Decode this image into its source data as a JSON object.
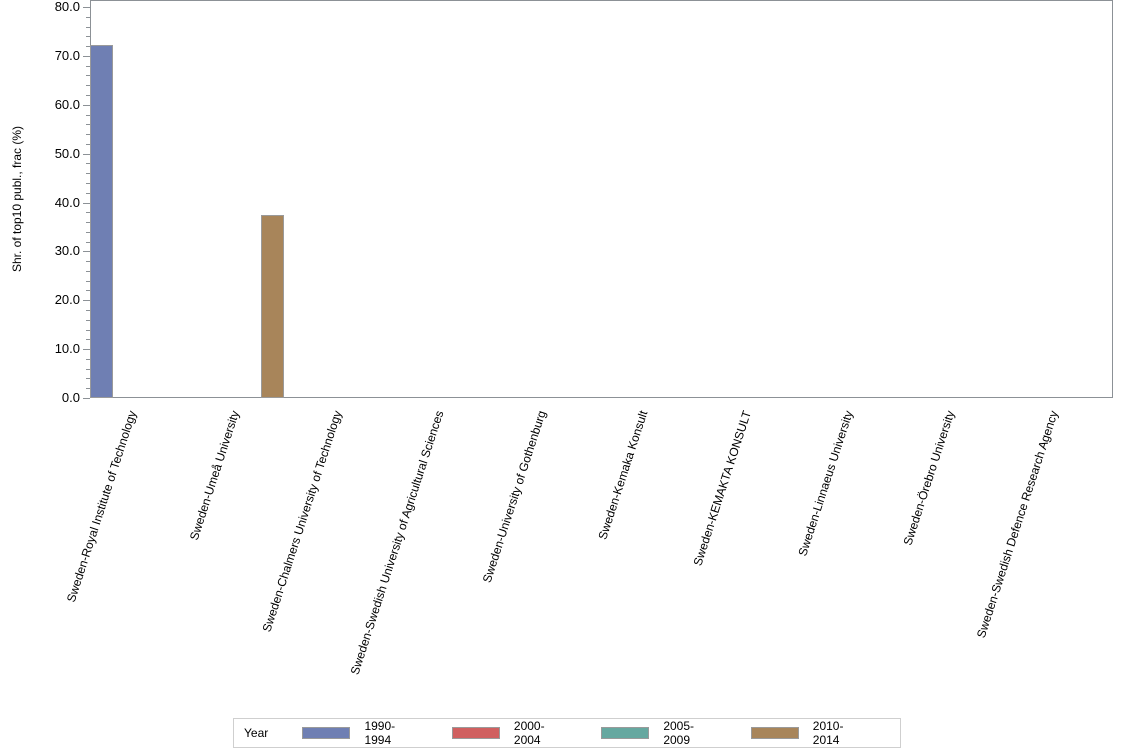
{
  "chart_data": {
    "type": "bar",
    "title": "",
    "xlabel": "",
    "ylabel": "Shr. of top10 publ., frac (%)",
    "ylim": [
      0,
      80
    ],
    "yticks": [
      "0.0",
      "10.0",
      "20.0",
      "30.0",
      "40.0",
      "50.0",
      "60.0",
      "70.0",
      "80.0"
    ],
    "grid": false,
    "legend_position": "bottom",
    "legend_title": "Year",
    "categories": [
      "Sweden-Royal Institute of Technology",
      "Sweden-Umeå University",
      "Sweden-Chalmers University of Technology",
      "Sweden-Swedish University of Agricultural Sciences",
      "Sweden-University of Gothenburg",
      "Sweden-Kemaka Konsult",
      "Sweden-KEMAKTA KONSULT",
      "Sweden-Linnaeus University",
      "Sweden-Örebro University",
      "Sweden-Swedish Defence Research Agency"
    ],
    "series": [
      {
        "name": "1990-1994",
        "color": "#6f7fb3",
        "values": [
          72.2,
          null,
          null,
          null,
          null,
          null,
          null,
          null,
          null,
          null
        ]
      },
      {
        "name": "2000-2004",
        "color": "#d06060",
        "values": [
          null,
          null,
          null,
          null,
          null,
          null,
          null,
          null,
          null,
          null
        ]
      },
      {
        "name": "2005-2009",
        "color": "#66a8a0",
        "values": [
          null,
          null,
          null,
          null,
          null,
          null,
          null,
          null,
          null,
          null
        ]
      },
      {
        "name": "2010-2014",
        "color": "#a8855a",
        "values": [
          null,
          37.5,
          null,
          null,
          null,
          null,
          null,
          null,
          null,
          null
        ]
      }
    ]
  }
}
